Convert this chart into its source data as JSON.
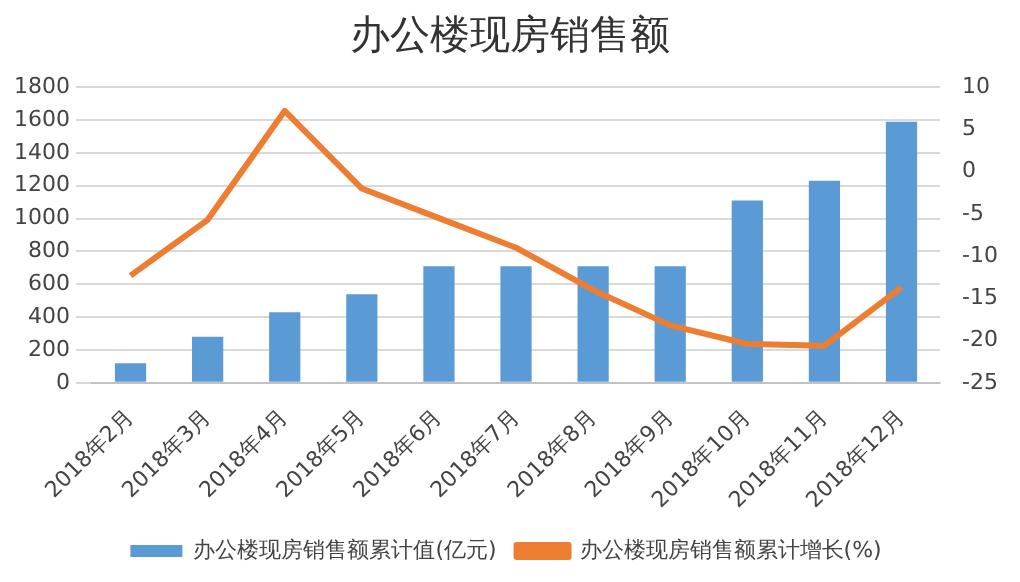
{
  "chart_data": {
    "type": "bar",
    "title": "办公楼现房销售额",
    "categories": [
      "2018年2月",
      "2018年3月",
      "2018年4月",
      "2018年5月",
      "2018年6月",
      "2018年7月",
      "2018年8月",
      "2018年9月",
      "2018年10月",
      "2018年11月",
      "2018年12月"
    ],
    "series": [
      {
        "name": "办公楼现房销售额累计值(亿元)",
        "color": "#5b9bd5",
        "values": [
          120,
          280,
          430,
          540,
          710,
          710,
          710,
          710,
          1110,
          1230,
          1590
        ]
      },
      {
        "name": "办公楼现房销售额累计增长(%)",
        "type": "line",
        "axis": "y2",
        "color": "#ed7d31",
        "values": [
          -12.3,
          -5.7,
          7.2,
          -2,
          -5.5,
          -9,
          -14,
          -18.2,
          -20.4,
          -20.6,
          -13.7
        ]
      }
    ],
    "ylim": [
      0,
      1800
    ],
    "yticks": [
      0,
      200,
      400,
      600,
      800,
      1000,
      1200,
      1400,
      1600,
      1800
    ],
    "y2lim": [
      -25,
      10
    ],
    "y2ticks": [
      -25,
      -20,
      -15,
      -10,
      -5,
      0,
      5,
      10
    ],
    "grid": "y",
    "legend": "bottom",
    "marker": "none"
  }
}
